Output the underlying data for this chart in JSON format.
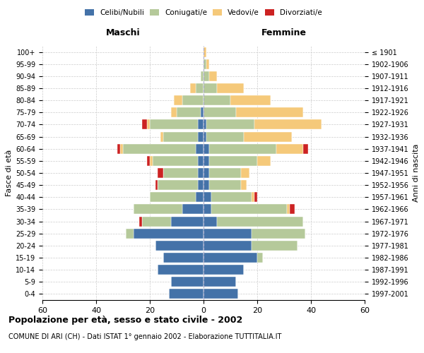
{
  "age_groups": [
    "0-4",
    "5-9",
    "10-14",
    "15-19",
    "20-24",
    "25-29",
    "30-34",
    "35-39",
    "40-44",
    "45-49",
    "50-54",
    "55-59",
    "60-64",
    "65-69",
    "70-74",
    "75-79",
    "80-84",
    "85-89",
    "90-94",
    "95-99",
    "100+"
  ],
  "birth_years": [
    "1997-2001",
    "1992-1996",
    "1987-1991",
    "1982-1986",
    "1977-1981",
    "1972-1976",
    "1967-1971",
    "1962-1966",
    "1957-1961",
    "1952-1956",
    "1947-1951",
    "1942-1946",
    "1937-1941",
    "1932-1936",
    "1927-1931",
    "1922-1926",
    "1917-1921",
    "1912-1916",
    "1907-1911",
    "1902-1906",
    "≤ 1901"
  ],
  "colors": {
    "celibi": "#4472a8",
    "coniugati": "#b5c99a",
    "vedovi": "#f5c97a",
    "divorziati": "#cc2222"
  },
  "males": {
    "celibi": [
      13,
      12,
      17,
      15,
      18,
      26,
      12,
      8,
      3,
      2,
      2,
      2,
      3,
      2,
      2,
      1,
      0,
      0,
      0,
      0,
      0
    ],
    "coniugati": [
      0,
      0,
      0,
      0,
      0,
      3,
      11,
      18,
      17,
      15,
      13,
      17,
      27,
      13,
      18,
      9,
      8,
      3,
      1,
      0,
      0
    ],
    "vedovi": [
      0,
      0,
      0,
      0,
      0,
      0,
      0,
      0,
      0,
      0,
      0,
      1,
      1,
      1,
      1,
      2,
      3,
      2,
      0,
      0,
      0
    ],
    "divorziati": [
      0,
      0,
      0,
      0,
      0,
      0,
      1,
      0,
      0,
      1,
      2,
      1,
      1,
      0,
      2,
      0,
      0,
      0,
      0,
      0,
      0
    ]
  },
  "females": {
    "nubili": [
      13,
      12,
      15,
      20,
      18,
      18,
      5,
      3,
      3,
      2,
      2,
      2,
      2,
      1,
      1,
      0,
      0,
      0,
      0,
      0,
      0
    ],
    "coniugate": [
      0,
      0,
      0,
      2,
      17,
      20,
      32,
      28,
      15,
      12,
      12,
      18,
      25,
      14,
      18,
      12,
      10,
      5,
      2,
      1,
      0
    ],
    "vedove": [
      0,
      0,
      0,
      0,
      0,
      0,
      0,
      1,
      1,
      2,
      3,
      5,
      10,
      18,
      25,
      25,
      15,
      10,
      3,
      1,
      1
    ],
    "divorziate": [
      0,
      0,
      0,
      0,
      0,
      0,
      0,
      2,
      1,
      0,
      0,
      0,
      2,
      0,
      0,
      0,
      0,
      0,
      0,
      0,
      0
    ]
  },
  "xlim": 60,
  "title": "Popolazione per età, sesso e stato civile - 2002",
  "subtitle": "COMUNE DI ARI (CH) - Dati ISTAT 1° gennaio 2002 - Elaborazione TUTTITALIA.IT",
  "ylabel": "Fasce di età",
  "ylabel_right": "Anni di nascita",
  "label_maschi": "Maschi",
  "label_femmine": "Femmine"
}
